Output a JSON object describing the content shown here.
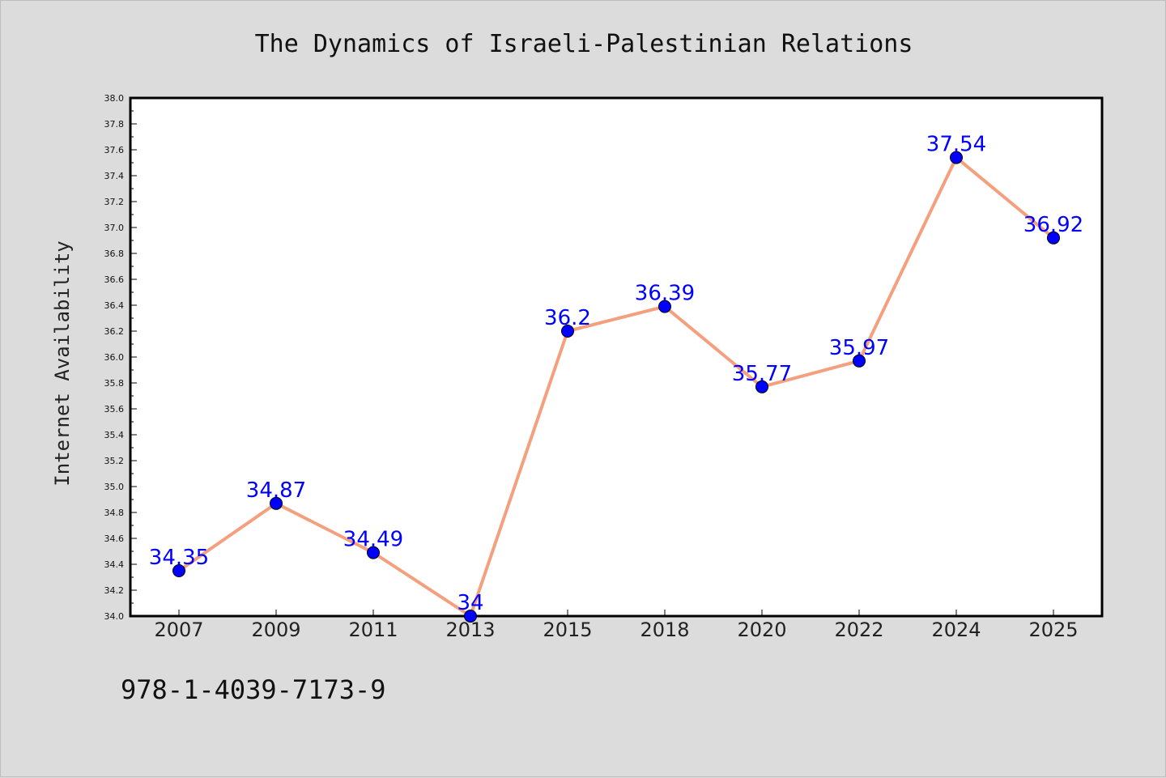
{
  "chart_data": {
    "type": "line",
    "title": "The Dynamics of Israeli-Palestinian Relations",
    "xlabel": "",
    "ylabel": "Internet Availability",
    "categories": [
      "2007",
      "2009",
      "2011",
      "2013",
      "2015",
      "2018",
      "2020",
      "2022",
      "2024",
      "2025"
    ],
    "values": [
      34.35,
      34.87,
      34.49,
      34,
      36.2,
      36.39,
      35.77,
      35.97,
      37.54,
      36.92
    ],
    "data_labels": [
      "34.35",
      "34.87",
      "34.49",
      "34",
      "36.2",
      "36.39",
      "35.77",
      "35.97",
      "37.54",
      "36.92"
    ],
    "ylim": [
      34.0,
      38.0
    ],
    "yticks": [
      "34.0",
      "34.2",
      "34.4",
      "34.6",
      "34.8",
      "35.0",
      "35.2",
      "35.4",
      "35.6",
      "35.8",
      "36.0",
      "36.2",
      "36.4",
      "36.6",
      "36.8",
      "37.0",
      "37.2",
      "37.4",
      "37.6",
      "37.8",
      "38.0"
    ],
    "grid": false,
    "line_color": "#f4a07f",
    "marker_color": "#0000ff",
    "label_color": "#0000ff",
    "plot_background": "#ffffff",
    "figure_background": "#dcdcdc"
  },
  "footer": {
    "isbn": "978-1-4039-7173-9"
  }
}
